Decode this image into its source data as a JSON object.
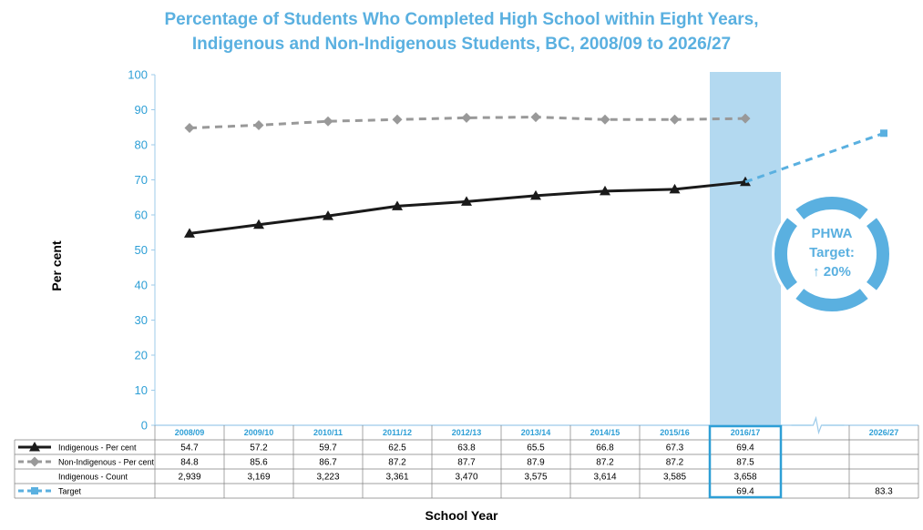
{
  "chart_data": {
    "type": "line",
    "title_lines": [
      "Percentage of Students Who Completed High School within Eight Years,",
      "Indigenous and Non-Indigenous Students, BC, 2008/09 to 2026/27"
    ],
    "xlabel": "School Year",
    "ylabel": "Per cent",
    "ylim": [
      0,
      100
    ],
    "yticks": [
      0,
      10,
      20,
      30,
      40,
      50,
      60,
      70,
      80,
      90,
      100
    ],
    "categories": [
      "2008/09",
      "2009/10",
      "2010/11",
      "2011/12",
      "2012/13",
      "2013/14",
      "2014/15",
      "2015/16",
      "2016/17",
      "",
      "2026/27"
    ],
    "highlight_category": "2016/17",
    "series": [
      {
        "name": "Indigenous - Per cent",
        "color": "#1a1a1a",
        "style": "solid",
        "marker": "triangle",
        "values": [
          54.7,
          57.2,
          59.7,
          62.5,
          63.8,
          65.5,
          66.8,
          67.3,
          69.4,
          null,
          null
        ],
        "labels": [
          "54.7",
          "57.2",
          "59.7",
          "62.5",
          "63.8",
          "65.5",
          "66.8",
          "67.3",
          "69.4",
          "",
          ""
        ]
      },
      {
        "name": "Non-Indigenous - Per cent",
        "color": "#999999",
        "style": "dashed",
        "marker": "diamond",
        "values": [
          84.8,
          85.6,
          86.7,
          87.2,
          87.7,
          87.9,
          87.2,
          87.2,
          87.5,
          null,
          null
        ],
        "labels": [
          "84.8",
          "85.6",
          "86.7",
          "87.2",
          "87.7",
          "87.9",
          "87.2",
          "87.2",
          "87.5",
          "",
          ""
        ]
      },
      {
        "name": "Indigenous - Count",
        "color": "",
        "style": "none",
        "marker": "none",
        "values": [
          2939,
          3169,
          3223,
          3361,
          3470,
          3575,
          3614,
          3585,
          3658,
          null,
          null
        ],
        "labels": [
          "2,939",
          "3,169",
          "3,223",
          "3,361",
          "3,470",
          "3,575",
          "3,614",
          "3,585",
          "3,658",
          "",
          ""
        ]
      },
      {
        "name": "Target",
        "color": "#5ab0e0",
        "style": "dashed",
        "marker": "square",
        "values": [
          null,
          null,
          null,
          null,
          null,
          null,
          null,
          null,
          69.4,
          null,
          83.3
        ],
        "labels": [
          "",
          "",
          "",
          "",
          "",
          "",
          "",
          "",
          "69.4",
          "",
          "83.3"
        ]
      }
    ]
  },
  "badge": {
    "lines": [
      "PHWA",
      "Target:",
      "↑ 20%"
    ],
    "color": "#5ab0e0",
    "icon": "up-arrow-icon"
  }
}
